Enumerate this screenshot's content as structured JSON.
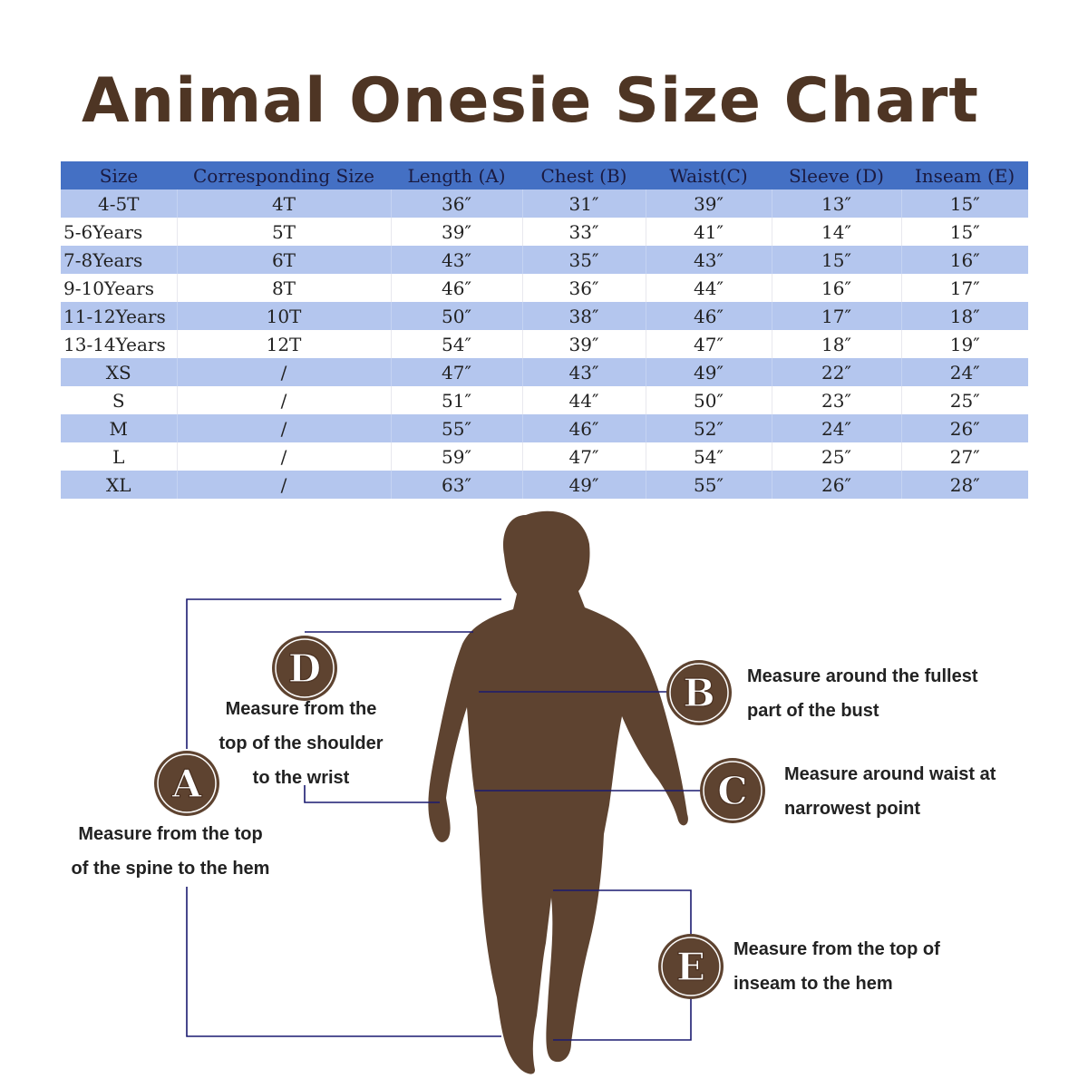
{
  "title": "Animal Onesie Size Chart",
  "table": {
    "headers": [
      "Size",
      "Corresponding Size",
      "Length (A)",
      "Chest (B)",
      "Waist(C)",
      "Sleeve (D)",
      "Inseam (E)"
    ],
    "rows": [
      [
        "4-5T",
        "4T",
        "36″",
        "31″",
        "39″",
        "13″",
        "15″"
      ],
      [
        "5-6Years",
        "5T",
        "39″",
        "33″",
        "41″",
        "14″",
        "15″"
      ],
      [
        "7-8Years",
        "6T",
        "43″",
        "35″",
        "43″",
        "15″",
        "16″"
      ],
      [
        "9-10Years",
        "8T",
        "46″",
        "36″",
        "44″",
        "16″",
        "17″"
      ],
      [
        "11-12Years",
        "10T",
        "50″",
        "38″",
        "46″",
        "17″",
        "18″"
      ],
      [
        "13-14Years",
        "12T",
        "54″",
        "39″",
        "47″",
        "18″",
        "19″"
      ],
      [
        "XS",
        "/",
        "47″",
        "43″",
        "49″",
        "22″",
        "24″"
      ],
      [
        "S",
        "/",
        "51″",
        "44″",
        "50″",
        "23″",
        "25″"
      ],
      [
        "M",
        "/",
        "55″",
        "46″",
        "52″",
        "24″",
        "26″"
      ],
      [
        "L",
        "/",
        "59″",
        "47″",
        "54″",
        "25″",
        "27″"
      ],
      [
        "XL",
        "/",
        "63″",
        "49″",
        "55″",
        "26″",
        "28″"
      ]
    ]
  },
  "colors": {
    "title": "#4e3524",
    "header_bg": "#4470c4",
    "row_band": "#b4c6ee",
    "silhouette": "#5e4330",
    "badge": "#5e4330",
    "guide_line": "#1a1a70"
  },
  "measurements": {
    "A": {
      "letter": "A",
      "lines": [
        "Measure from the top",
        "of the spine to the hem"
      ]
    },
    "B": {
      "letter": "B",
      "lines": [
        "Measure around the fullest",
        "part of the bust"
      ]
    },
    "C": {
      "letter": "C",
      "lines": [
        "Measure around waist at",
        "narrowest point"
      ]
    },
    "D": {
      "letter": "D",
      "lines": [
        "Measure from the",
        "top of the shoulder",
        "to the wrist"
      ]
    },
    "E": {
      "letter": "E",
      "lines": [
        "Measure from the top of",
        "inseam to the hem"
      ]
    }
  }
}
